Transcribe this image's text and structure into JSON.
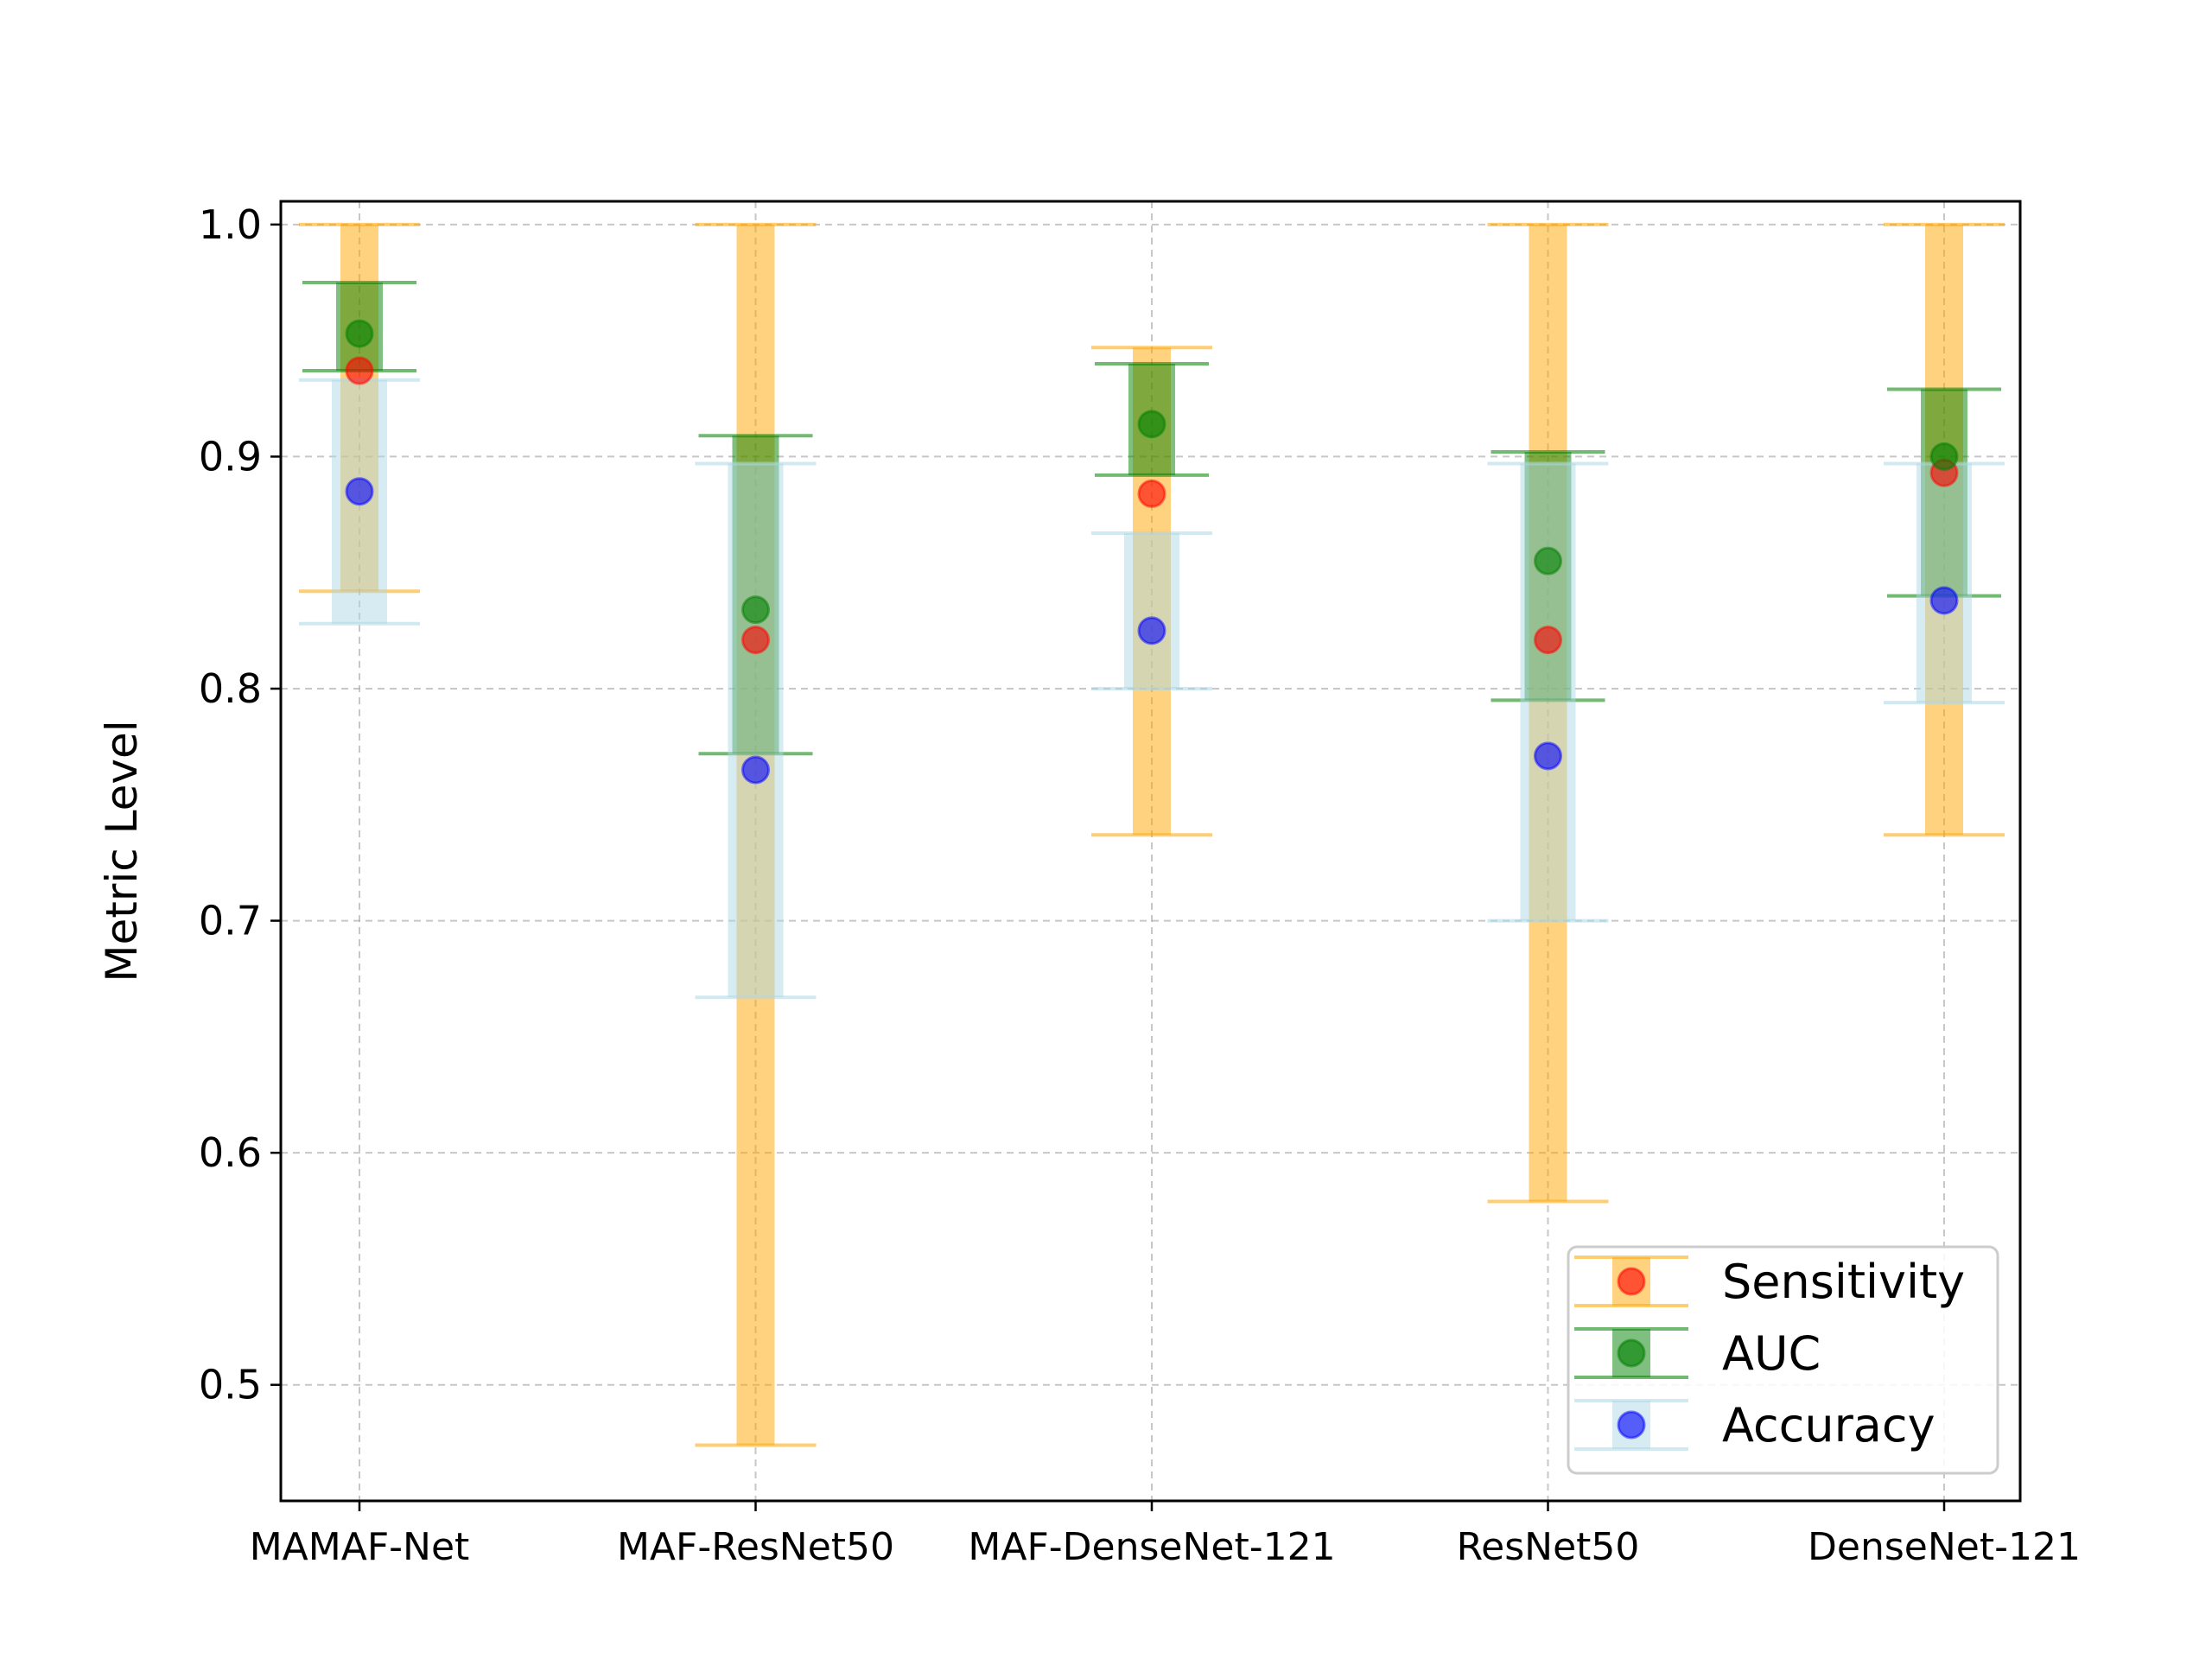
{
  "chart_data": {
    "type": "error-bar",
    "title": "",
    "xlabel": "",
    "ylabel": "Metric Level",
    "ylim": [
      0.45,
      1.01
    ],
    "yticks": [
      0.5,
      0.6,
      0.7,
      0.8,
      0.9,
      1.0
    ],
    "ytick_labels": [
      "0.5",
      "0.6",
      "0.7",
      "0.8",
      "0.9",
      "1.0"
    ],
    "grid": true,
    "legend_position": "lower-right",
    "categories": [
      "MAMAF-Net",
      "MAF-ResNet50",
      "MAF-DenseNet-121",
      "ResNet50",
      "DenseNet-121"
    ],
    "series": [
      {
        "name": "Sensitivity",
        "bar_color": "#ffa500",
        "marker_color": "#ff0000",
        "values": [
          0.937,
          0.821,
          0.884,
          0.821,
          0.893
        ],
        "low": [
          0.842,
          0.474,
          0.737,
          0.579,
          0.737
        ],
        "high": [
          1.0,
          1.0,
          0.947,
          1.0,
          1.0
        ]
      },
      {
        "name": "AUC",
        "bar_color": "#008000",
        "marker_color": "#008000",
        "values": [
          0.953,
          0.834,
          0.914,
          0.855,
          0.9
        ],
        "low": [
          0.937,
          0.772,
          0.892,
          0.795,
          0.84
        ],
        "high": [
          0.975,
          0.909,
          0.94,
          0.902,
          0.929
        ]
      },
      {
        "name": "Accuracy",
        "bar_color": "#add8e6",
        "marker_color": "#0000ff",
        "values": [
          0.885,
          0.765,
          0.825,
          0.771,
          0.838
        ],
        "low": [
          0.828,
          0.667,
          0.8,
          0.7,
          0.794
        ],
        "high": [
          0.933,
          0.897,
          0.867,
          0.897,
          0.897
        ]
      }
    ]
  }
}
